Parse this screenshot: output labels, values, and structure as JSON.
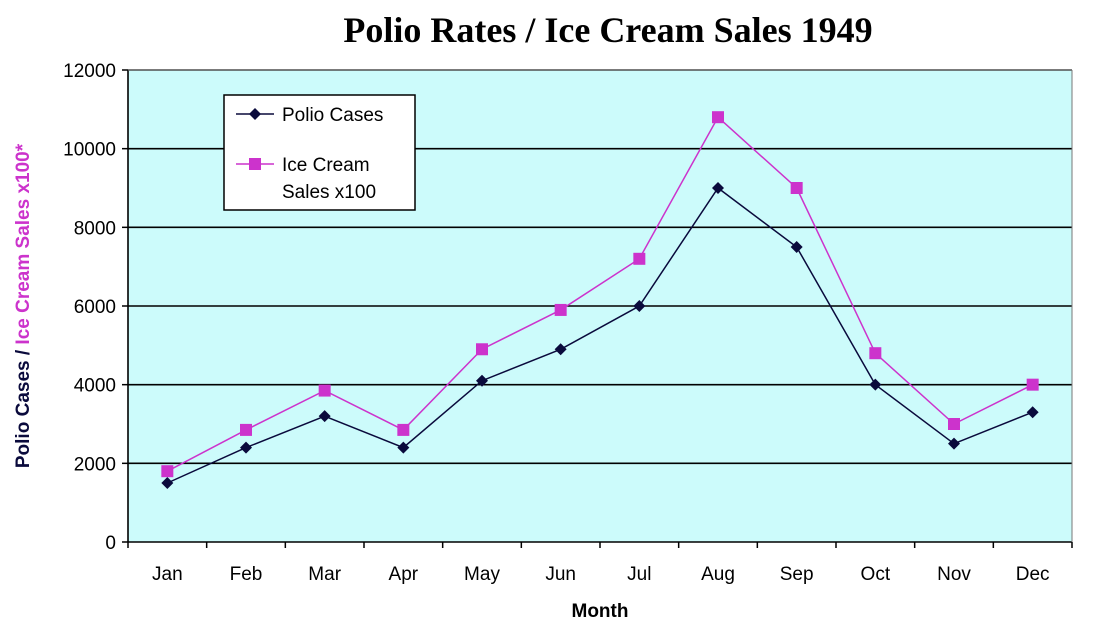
{
  "chart_data": {
    "type": "line",
    "title": "Polio Rates / Ice Cream Sales 1949",
    "xlabel": "Month",
    "ylabel_parts": [
      "Polio Cases / ",
      "Ice Cream Sales x100*"
    ],
    "categories": [
      "Jan",
      "Feb",
      "Mar",
      "Apr",
      "May",
      "Jun",
      "Jul",
      "Aug",
      "Sep",
      "Oct",
      "Nov",
      "Dec"
    ],
    "ylim": [
      0,
      12000
    ],
    "yticks": [
      "0",
      "2000",
      "4000",
      "6000",
      "8000",
      "10000",
      "12000"
    ],
    "grid": true,
    "legend_position": "top-left",
    "series": [
      {
        "name": "Polio Cases",
        "marker": "diamond",
        "color": "#0a0a3c",
        "values": [
          1500,
          2400,
          3200,
          2400,
          4100,
          4900,
          6000,
          9000,
          7500,
          4000,
          2500,
          3300
        ]
      },
      {
        "name_lines": [
          "Ice Cream",
          "Sales x100"
        ],
        "marker": "square",
        "color": "#cc33cc",
        "values": [
          1800,
          2850,
          3850,
          2850,
          4900,
          5900,
          7200,
          10800,
          9000,
          4800,
          3000,
          4000
        ]
      }
    ],
    "colors": {
      "plot_background": "#ccfbfb",
      "gridline": "#000000",
      "ylabel_first_color": "#0a0a3c",
      "ylabel_second_color": "#cc33cc"
    }
  }
}
